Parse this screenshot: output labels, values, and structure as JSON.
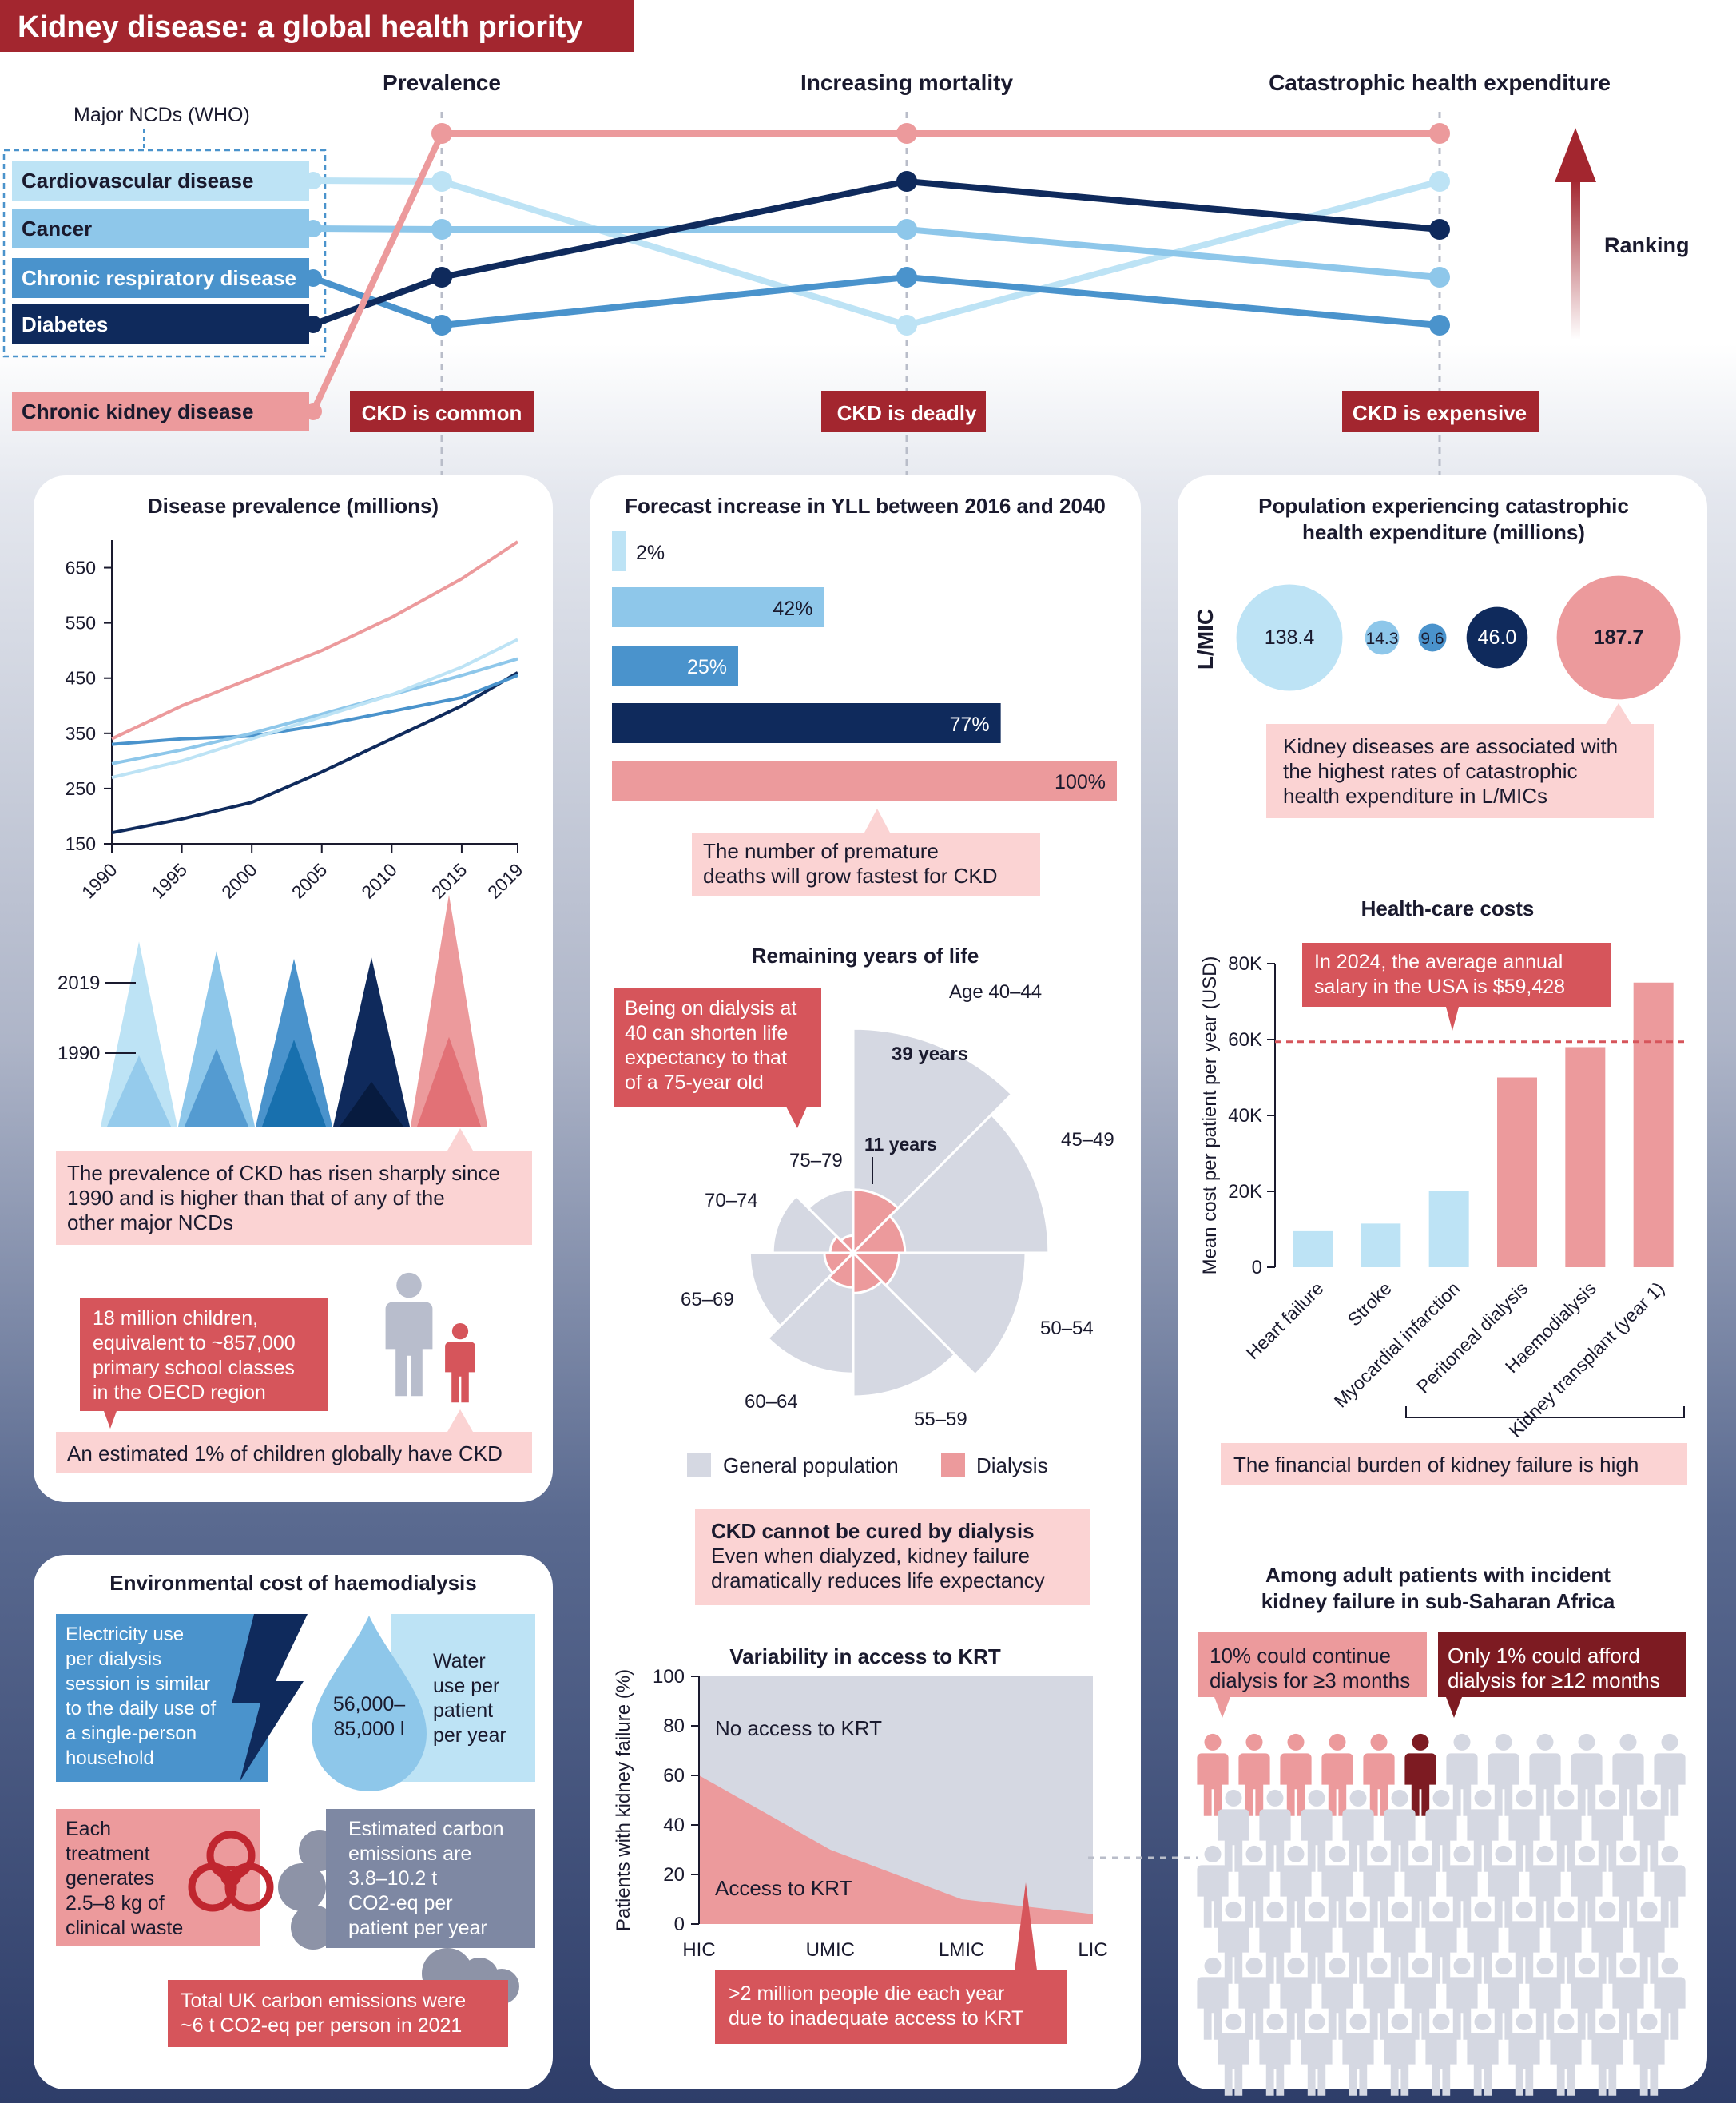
{
  "title": "Kidney disease: a global health priority",
  "colors": {
    "cardiovascular": "#bde3f5",
    "cancer": "#8ec7ea",
    "respiratory": "#4a93cc",
    "diabetes": "#0f2a5c",
    "ckd": "#ec9a9c",
    "banner": "#a3262f",
    "callout": "#fbd3d3",
    "callout_dark": "#d6555b",
    "gray_pop": "#d5d8e2"
  },
  "ranking": {
    "header_who": "Major NCDs (WHO)",
    "columns": [
      "Prevalence",
      "Increasing mortality",
      "Catastrophic health expenditure"
    ],
    "arrow_label": "Ranking",
    "diseases": [
      {
        "name": "Cardiovascular disease",
        "key": "cardiovascular",
        "ranks": [
          2,
          5,
          2
        ]
      },
      {
        "name": "Cancer",
        "key": "cancer",
        "ranks": [
          3,
          3,
          4
        ]
      },
      {
        "name": "Chronic respiratory disease",
        "key": "respiratory",
        "ranks": [
          5,
          4,
          5
        ]
      },
      {
        "name": "Diabetes",
        "key": "diabetes",
        "ranks": [
          4,
          2,
          3
        ]
      },
      {
        "name": "Chronic kidney disease",
        "key": "ckd",
        "ranks": [
          1,
          1,
          1
        ]
      }
    ],
    "tags": [
      "CKD is common",
      "CKD is deadly",
      "CKD is expensive"
    ]
  },
  "prevalence": {
    "title": "Disease prevalence (millions)",
    "callout": [
      "The prevalence of CKD has risen sharply since",
      "1990 and is higher than that of any of the",
      "other major NCDs"
    ],
    "triangle_labels": [
      "2019",
      "1990"
    ],
    "children_callout": [
      "18 million children,",
      "equivalent to ~857,000",
      "primary school classes",
      "in the OECD region"
    ],
    "children_note": "An estimated 1% of children globally have CKD"
  },
  "yll": {
    "title": "Forecast increase in YLL between 2016 and 2040",
    "callout": [
      "The number of premature",
      "deaths will grow fastest for CKD"
    ]
  },
  "remaining": {
    "title": "Remaining years of life",
    "top_label": "Age 40–44",
    "age_labels": [
      "45–49",
      "50–54",
      "55–59",
      "60–64",
      "65–69",
      "70–74",
      "75–79"
    ],
    "value_general": "39 years",
    "value_dialysis": "11 years",
    "callout": [
      "Being on dialysis at",
      "40 can shorten life",
      "expectancy to that",
      "of a 75-year old"
    ],
    "legend": [
      "General population",
      "Dialysis"
    ],
    "note_title": "CKD cannot be cured by dialysis",
    "note_body": [
      "Even when dialyzed, kidney failure",
      "dramatically reduces life expectancy"
    ]
  },
  "krt": {
    "title": "Variability in access to KRT",
    "no_access": "No access to KRT",
    "access": "Access to KRT",
    "callout": [
      ">2 million people die each year",
      "due to inadequate access to KRT"
    ]
  },
  "catastrophic": {
    "title": [
      "Population experiencing catastrophic",
      "health expenditure (millions)"
    ],
    "group_label": "L/MIC",
    "callout": [
      "Kidney diseases are associated with",
      "the highest rates of catastrophic",
      "health expenditure in L/MICs"
    ]
  },
  "costs": {
    "title": "Health-care costs",
    "salary_callout": [
      "In 2024, the average annual",
      "salary in the USA is $59,428"
    ],
    "note": "The financial burden of kidney failure is high"
  },
  "africa": {
    "title": [
      "Among adult patients with incident",
      "kidney failure in sub-Saharan Africa"
    ],
    "callout_a": [
      "10% could continue",
      "dialysis for ≥3 months"
    ],
    "callout_b": [
      "Only 1% could afford",
      "dialysis for ≥12 months"
    ]
  },
  "environment": {
    "title": "Environmental cost of haemodialysis",
    "electricity": [
      "Electricity use",
      "per dialysis",
      "session is similar",
      "to the daily use of",
      "a single-person",
      "household"
    ],
    "water_amount": [
      "56,000–",
      "85,000 l"
    ],
    "water_text": [
      "Water",
      "use per",
      "patient",
      "per year"
    ],
    "waste": [
      "Each",
      "treatment",
      "generates",
      "2.5–8 kg of",
      "clinical waste"
    ],
    "carbon": [
      "Estimated carbon",
      "emissions are",
      "3.8–10.2 t",
      "CO2-eq per",
      "patient per year"
    ],
    "uk_note": [
      "Total UK carbon emissions were",
      "~6 t CO2-eq per person in 2021"
    ]
  },
  "chart_data": [
    {
      "type": "line",
      "title": "Disease prevalence (millions)",
      "x": [
        1990,
        1995,
        2000,
        2005,
        2010,
        2015,
        2019
      ],
      "ylim": [
        150,
        700
      ],
      "yticks": [
        150,
        250,
        350,
        450,
        550,
        650
      ],
      "series": [
        {
          "key": "ckd",
          "values": [
            340,
            400,
            450,
            500,
            560,
            630,
            697
          ]
        },
        {
          "key": "cardiovascular",
          "values": [
            270,
            300,
            340,
            380,
            420,
            470,
            520
          ]
        },
        {
          "key": "cancer",
          "values": [
            295,
            320,
            350,
            385,
            420,
            455,
            485
          ]
        },
        {
          "key": "respiratory",
          "values": [
            330,
            340,
            345,
            365,
            390,
            415,
            455
          ]
        },
        {
          "key": "diabetes",
          "values": [
            170,
            195,
            225,
            280,
            340,
            400,
            460
          ]
        }
      ]
    },
    {
      "type": "bar",
      "title": "Forecast increase in YLL between 2016 and 2040",
      "series": [
        {
          "key": "cardiovascular",
          "value": 2,
          "label": "2%"
        },
        {
          "key": "cancer",
          "value": 42,
          "label": "42%"
        },
        {
          "key": "respiratory",
          "value": 25,
          "label": "25%"
        },
        {
          "key": "diabetes",
          "value": 77,
          "label": "77%"
        },
        {
          "key": "ckd",
          "value": 100,
          "label": "100%"
        }
      ]
    },
    {
      "type": "pie",
      "title": "Remaining years of life",
      "categories": [
        "Age 40–44",
        "45–49",
        "50–54",
        "55–59",
        "60–64",
        "65–69",
        "70–74",
        "75–79"
      ],
      "general_population": [
        39,
        34,
        30,
        25,
        21,
        18,
        14,
        11
      ],
      "dialysis": [
        11,
        9,
        8,
        7,
        6,
        5,
        4,
        3
      ]
    },
    {
      "type": "area",
      "title": "Variability in access to KRT",
      "categories": [
        "HIC",
        "UMIC",
        "LMIC",
        "LIC"
      ],
      "values": [
        60,
        30,
        10,
        4
      ],
      "ylabel": "Patients with kidney failure (%)",
      "ylim": [
        0,
        100
      ],
      "yticks": [
        0,
        20,
        40,
        60,
        80,
        100
      ]
    },
    {
      "type": "scatter",
      "title": "Population experiencing catastrophic health expenditure (millions)",
      "series": [
        {
          "key": "cardiovascular",
          "value": 138.4,
          "label": "138.4"
        },
        {
          "key": "cancer",
          "value": 14.3,
          "label": "14.3"
        },
        {
          "key": "respiratory",
          "value": 9.6,
          "label": "9.6"
        },
        {
          "key": "diabetes",
          "value": 46.0,
          "label": "46.0"
        },
        {
          "key": "ckd",
          "value": 187.7,
          "label": "187.7"
        }
      ]
    },
    {
      "type": "bar",
      "title": "Health-care costs",
      "ylabel": "Mean cost per patient per year (USD)",
      "ylim": [
        0,
        80000
      ],
      "yticks": [
        "0",
        "20K",
        "40K",
        "60K",
        "80K"
      ],
      "reference_line": 59428,
      "categories": [
        "Heart failure",
        "Stroke",
        "Myocardial infarction",
        "Peritoneal dialysis",
        "Haemodialysis",
        "Kidney transplant (year 1)"
      ],
      "values": [
        9500,
        11500,
        20000,
        50000,
        58000,
        75000
      ],
      "bar_colors": [
        "cardiovascular",
        "cardiovascular",
        "cardiovascular",
        "ckd",
        "ckd",
        "ckd"
      ]
    }
  ]
}
